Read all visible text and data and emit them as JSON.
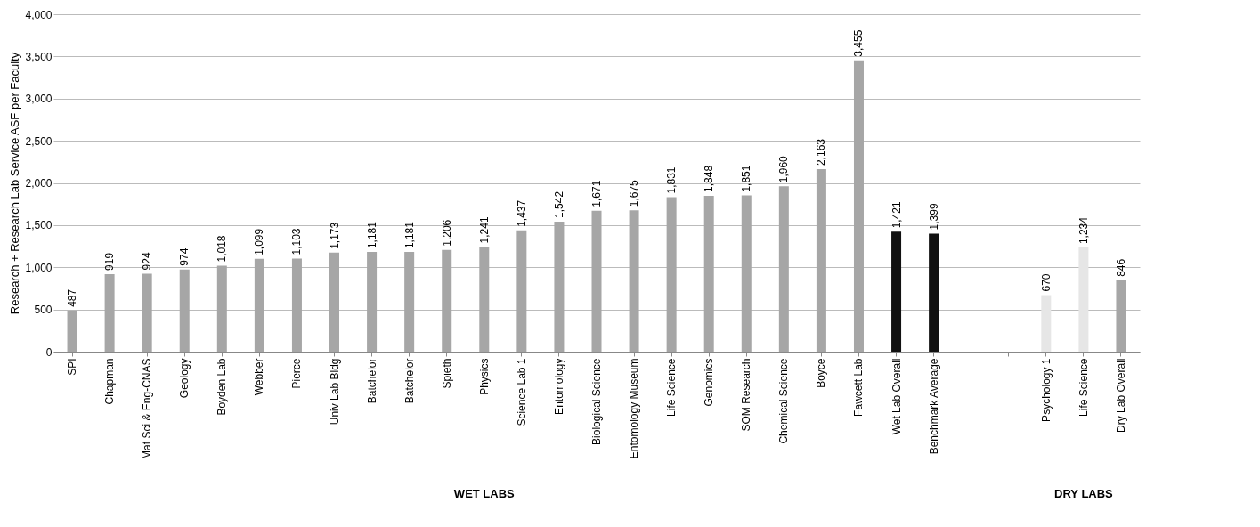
{
  "chart_data": {
    "type": "bar",
    "ylabel": "Research + Research Lab Service ASF per Faculty",
    "categories": [
      "SPI",
      "Chapman",
      "Mat Sci & Eng-CNAS",
      "Geology",
      "Boyden Lab",
      "Webber",
      "Pierce",
      "Univ Lab Bldg",
      "Batchelor",
      "Batchelor",
      "Spieth",
      "Physics",
      "Science Lab 1",
      "Entomology",
      "Biological Science",
      "Entomology Museum",
      "Life Science",
      "Genomics",
      "SOM Research",
      "Chemical Science",
      "Boyce",
      "Fawcett Lab",
      "Wet Lab Overall",
      "Benchmark Average",
      null,
      null,
      "Psychology 1",
      "Life Science",
      "Dry Lab Overall"
    ],
    "values": [
      487,
      919,
      924,
      974,
      1018,
      1099,
      1103,
      1173,
      1181,
      1181,
      1206,
      1241,
      1437,
      1542,
      1671,
      1675,
      1831,
      1848,
      1851,
      1960,
      2163,
      3455,
      1421,
      1399,
      null,
      null,
      670,
      1234,
      846
    ],
    "value_labels": [
      "487",
      "919",
      "924",
      "974",
      "1,018",
      "1,099",
      "1,103",
      "1,173",
      "1,181",
      "1,181",
      "1,206",
      "1,241",
      "1,437",
      "1,542",
      "1,671",
      "1,675",
      "1,831",
      "1,848",
      "1,851",
      "1,960",
      "2,163",
      "3,455",
      "1,421",
      "1,399",
      null,
      null,
      "670",
      "1,234",
      "846"
    ],
    "colors": [
      "#a6a6a6",
      "#a6a6a6",
      "#a6a6a6",
      "#a6a6a6",
      "#a6a6a6",
      "#a6a6a6",
      "#a6a6a6",
      "#a6a6a6",
      "#a6a6a6",
      "#a6a6a6",
      "#a6a6a6",
      "#a6a6a6",
      "#a6a6a6",
      "#a6a6a6",
      "#a6a6a6",
      "#a6a6a6",
      "#a6a6a6",
      "#a6a6a6",
      "#a6a6a6",
      "#a6a6a6",
      "#a6a6a6",
      "#a6a6a6",
      "#111111",
      "#111111",
      null,
      null,
      "#e6e6e6",
      "#e6e6e6",
      "#a6a6a6"
    ],
    "ylim": [
      0,
      4000
    ],
    "yticks": [
      {
        "value": 0,
        "label": "0"
      },
      {
        "value": 500,
        "label": "500"
      },
      {
        "value": 1000,
        "label": "1,000"
      },
      {
        "value": 1500,
        "label": "1,500"
      },
      {
        "value": 2000,
        "label": "2,000"
      },
      {
        "value": 2500,
        "label": "2,500"
      },
      {
        "value": 3000,
        "label": "3,000"
      },
      {
        "value": 3500,
        "label": "3,500"
      },
      {
        "value": 4000,
        "label": "4,000"
      }
    ],
    "grid": "y",
    "annotations": [
      "WET LABS",
      "DRY LABS"
    ]
  }
}
